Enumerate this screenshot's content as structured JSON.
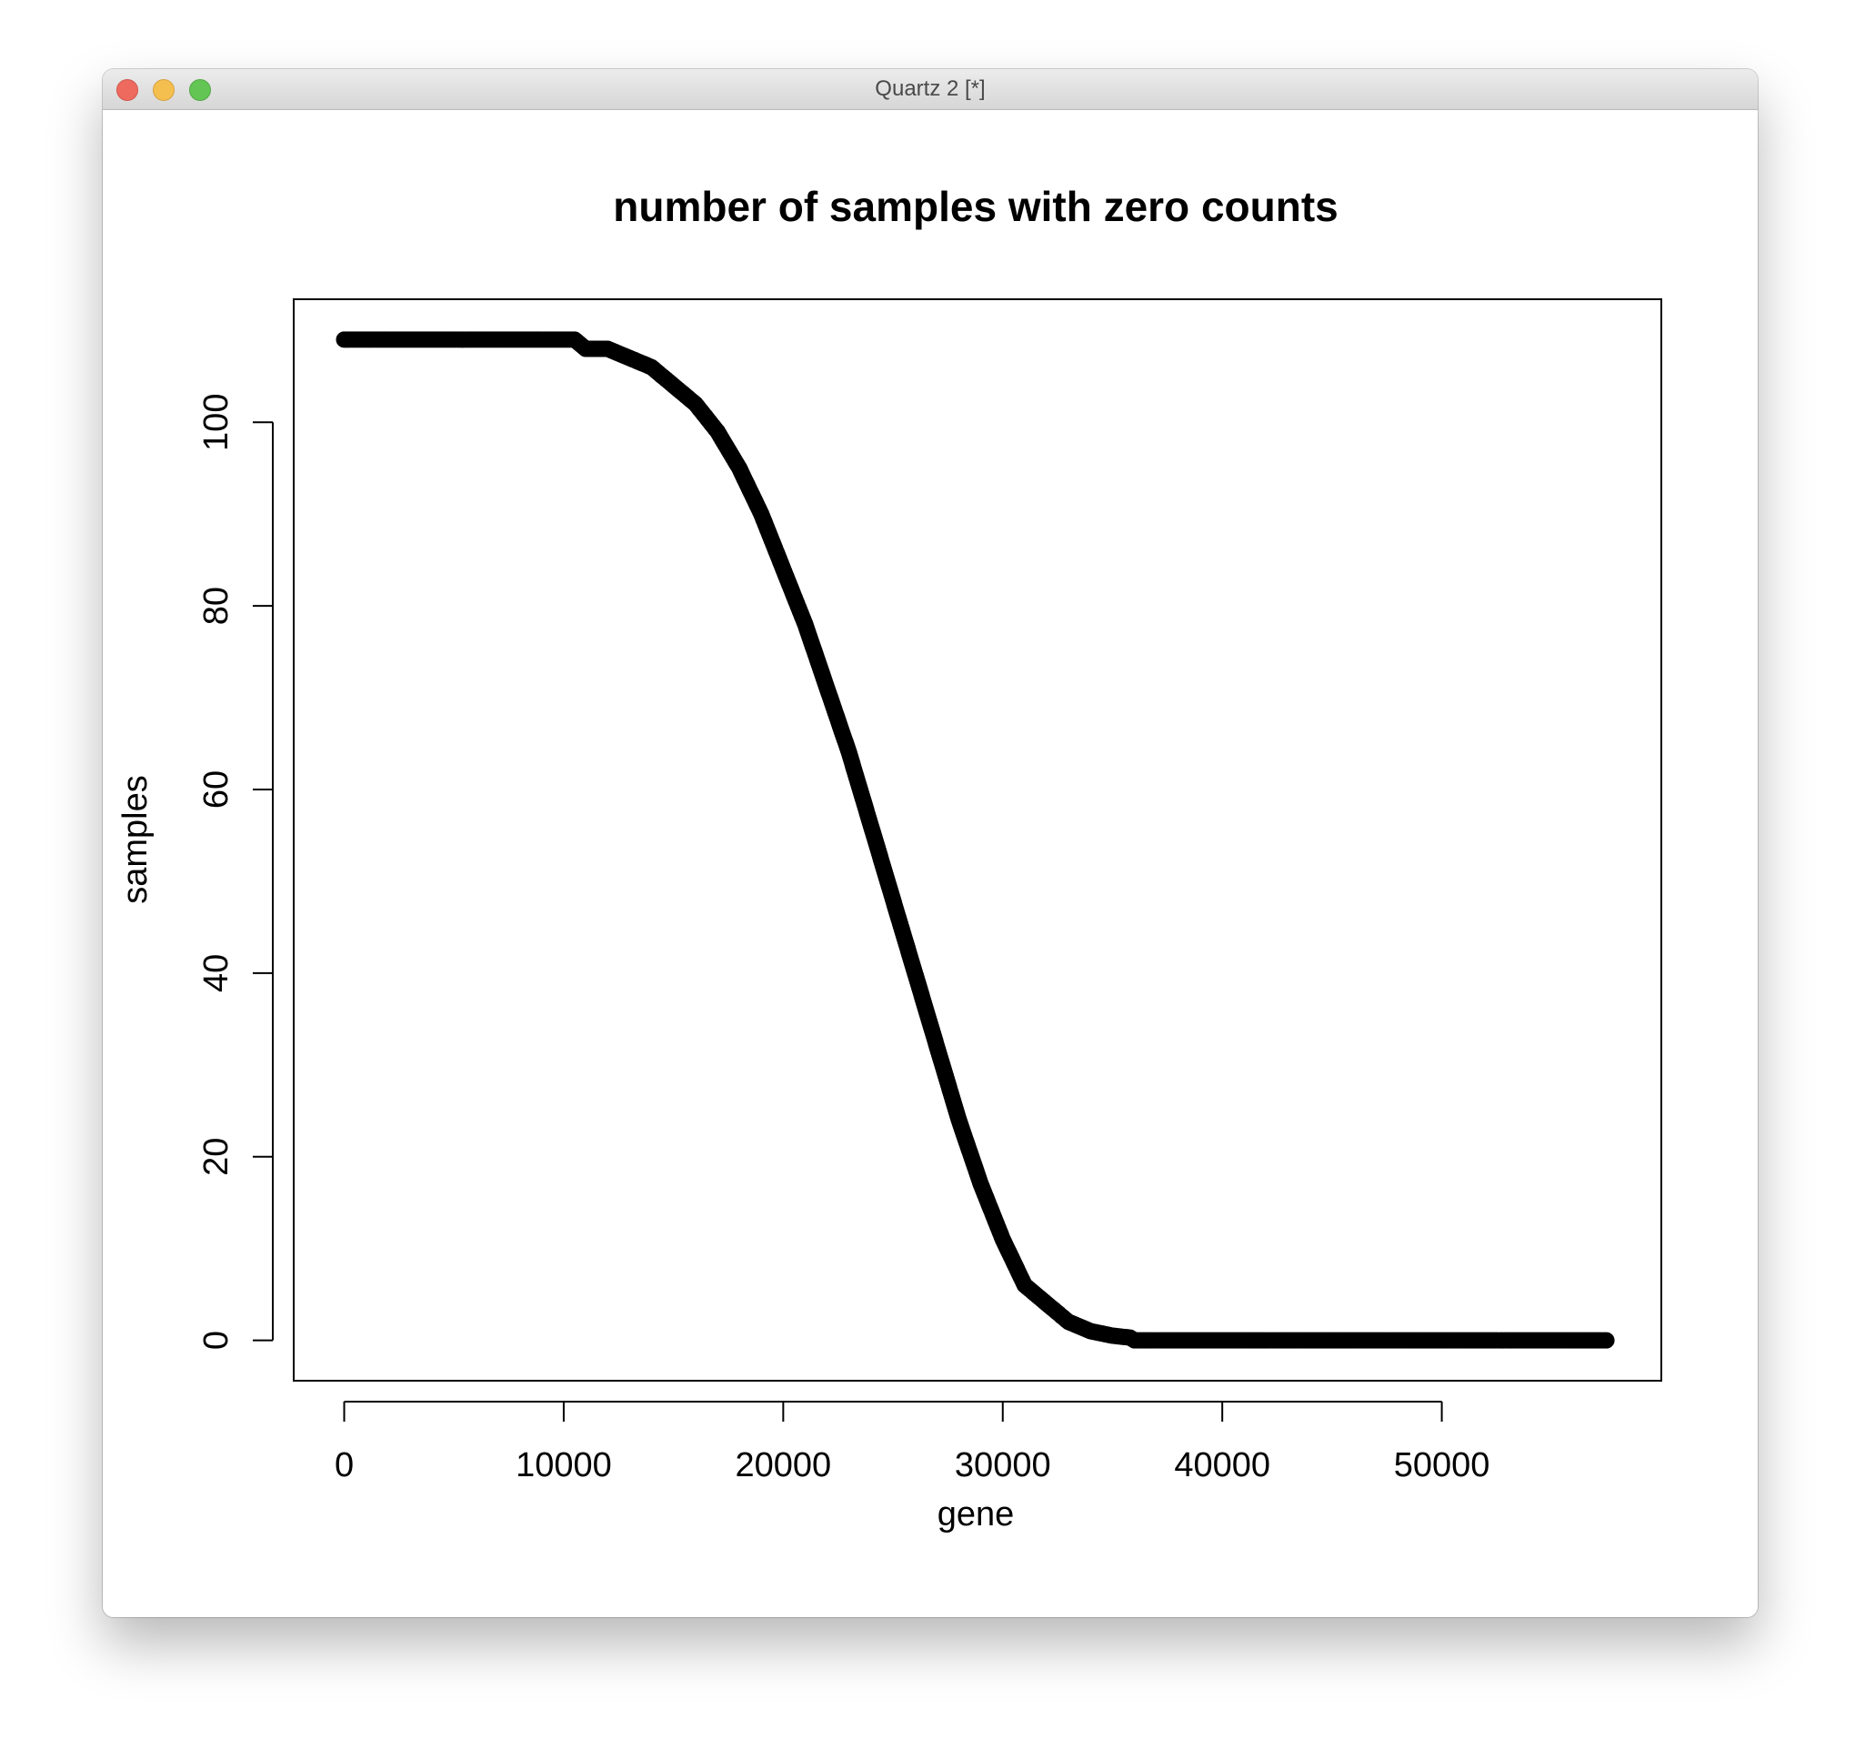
{
  "window": {
    "title": "Quartz 2 [*]"
  },
  "chart_data": {
    "type": "scatter",
    "title": "number of samples with zero counts",
    "xlabel": "gene",
    "ylabel": "samples",
    "xlim": [
      -2300,
      60000
    ],
    "ylim": [
      -4.4,
      113.4
    ],
    "x_ticks": [
      0,
      10000,
      20000,
      30000,
      40000,
      50000
    ],
    "y_ticks": [
      0,
      20,
      40,
      60,
      80,
      100
    ],
    "point_color": "#000000",
    "x": [
      0,
      10500,
      11000,
      12000,
      13000,
      14000,
      15000,
      16000,
      17000,
      18000,
      19000,
      20000,
      21000,
      22000,
      23000,
      24000,
      25000,
      26000,
      27000,
      28000,
      29000,
      30000,
      31000,
      32000,
      33000,
      34000,
      35000,
      35800,
      36000,
      57500
    ],
    "y": [
      109,
      109,
      108,
      108,
      107,
      106,
      104,
      102,
      99,
      95,
      90,
      84,
      78,
      71,
      64,
      56,
      48,
      40,
      32,
      24,
      17,
      11,
      6,
      4,
      2,
      1,
      0.5,
      0.3,
      0,
      0
    ]
  }
}
